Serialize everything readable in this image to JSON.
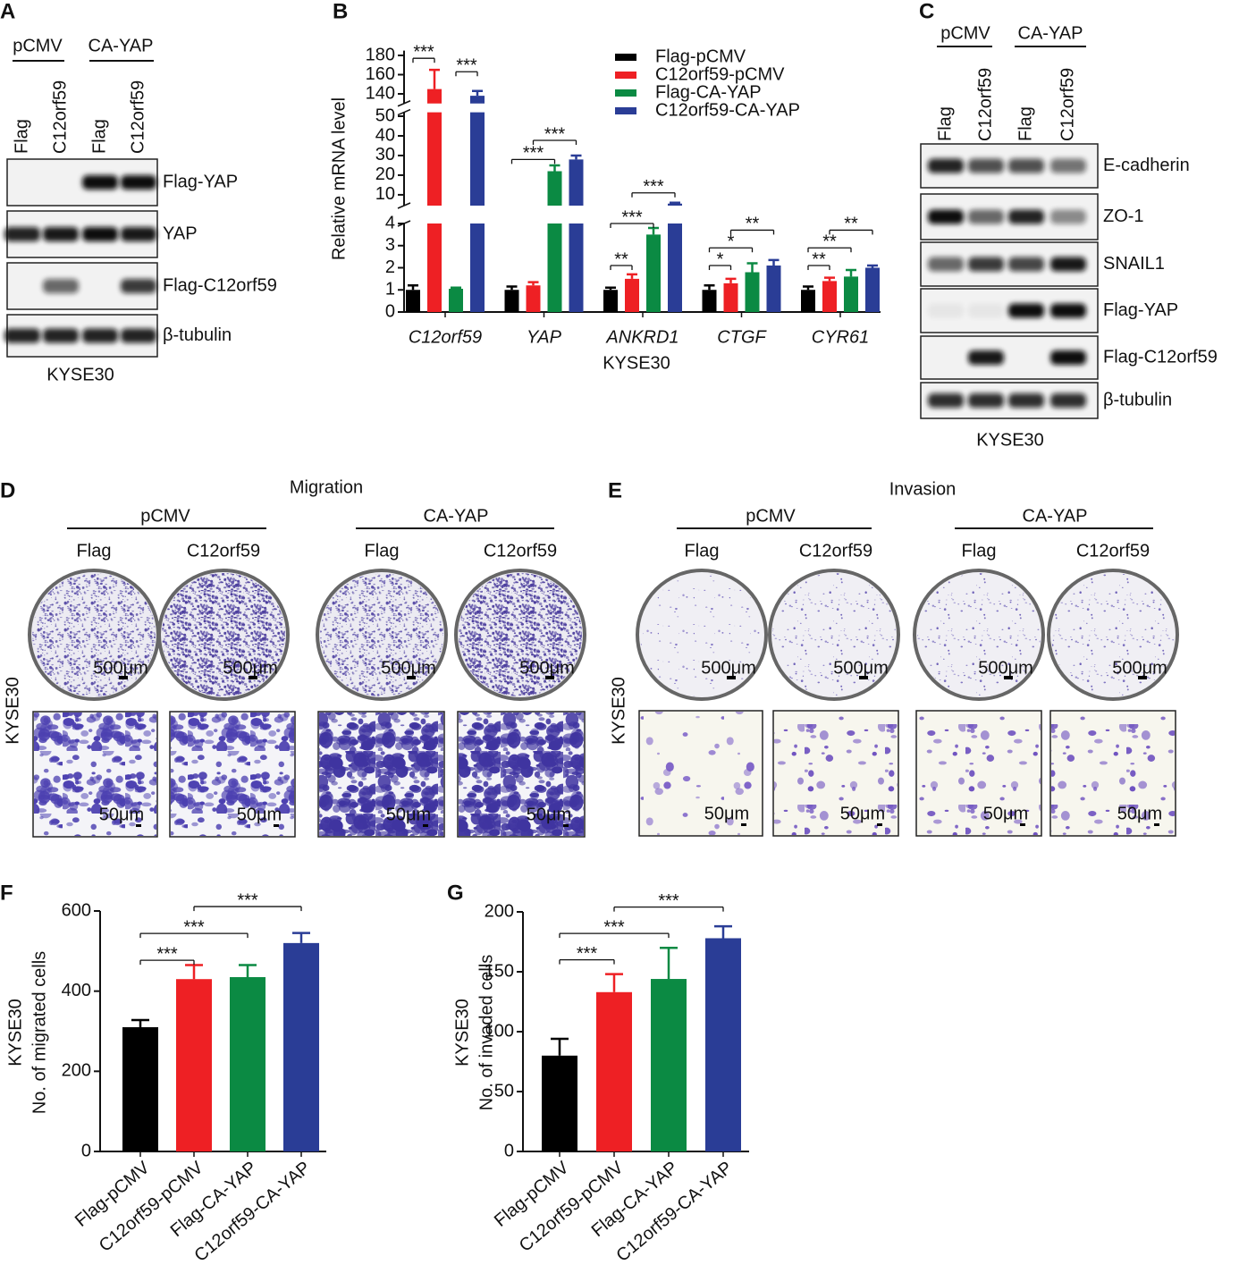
{
  "panels": {
    "A": {
      "letter": "A",
      "groups": [
        "pCMV",
        "CA-YAP"
      ],
      "lanes": [
        "Flag",
        "C12orf59",
        "Flag",
        "C12orf59"
      ],
      "blots": [
        "Flag-YAP",
        "YAP",
        "Flag-C12orf59",
        "β-tubulin"
      ],
      "cell_line": "KYSE30"
    },
    "C": {
      "letter": "C",
      "groups": [
        "pCMV",
        "CA-YAP"
      ],
      "lanes": [
        "Flag",
        "C12orf59",
        "Flag",
        "C12orf59"
      ],
      "blots": [
        "E-cadherin",
        "ZO-1",
        "SNAIL1",
        "Flag-YAP",
        "Flag-C12orf59",
        "β-tubulin"
      ],
      "cell_line": "KYSE30"
    },
    "D": {
      "letter": "D",
      "title": "Migration",
      "groups": [
        "pCMV",
        "CA-YAP"
      ],
      "lanes": [
        "Flag",
        "C12orf59",
        "Flag",
        "C12orf59"
      ],
      "row_label": "KYSE30",
      "scale_large": "500μm",
      "scale_small": "50μm"
    },
    "E": {
      "letter": "E",
      "title": "Invasion",
      "groups": [
        "pCMV",
        "CA-YAP"
      ],
      "lanes": [
        "Flag",
        "C12orf59",
        "Flag",
        "C12orf59"
      ],
      "row_label": "KYSE30",
      "scale_large": "500μm",
      "scale_small": "50μm"
    }
  },
  "chart_data": [
    {
      "letter": "B",
      "type": "grouped_bar",
      "ylabel": "Relative mRNA level",
      "xlabel": "KYSE30",
      "categories": [
        "C12orf59",
        "YAP",
        "ANKRD1",
        "CTGF",
        "CYR61"
      ],
      "series": [
        {
          "name": "Flag-pCMV",
          "color": "#000000",
          "values": [
            1,
            1,
            1,
            1,
            1
          ],
          "errors": [
            0.2,
            0.15,
            0.1,
            0.2,
            0.15
          ]
        },
        {
          "name": "C12orf59-pCMV",
          "color": "#ee2024",
          "values": [
            145,
            1.2,
            1.5,
            1.3,
            1.4
          ],
          "errors": [
            20,
            0.15,
            0.2,
            0.2,
            0.15
          ]
        },
        {
          "name": "Flag-CA-YAP",
          "color": "#0b8a43",
          "values": [
            1.05,
            22,
            3.5,
            1.8,
            1.6
          ],
          "errors": [
            0.05,
            3,
            0.3,
            0.4,
            0.3
          ]
        },
        {
          "name": "C12orf59-CA-YAP",
          "color": "#2a3d96",
          "values": [
            138,
            28,
            5.5,
            2.1,
            2.0
          ],
          "errors": [
            5,
            2,
            0.5,
            0.25,
            0.1
          ]
        }
      ],
      "y_segments": [
        {
          "ylim": [
            0,
            4
          ],
          "yticks": [
            0,
            1,
            2,
            3,
            4
          ]
        },
        {
          "ylim": [
            4.5,
            52
          ],
          "yticks": [
            10,
            20,
            30,
            40,
            50
          ]
        },
        {
          "ylim": [
            130,
            185
          ],
          "yticks": [
            140,
            160,
            180
          ]
        }
      ],
      "annotations": [
        {
          "label": "***",
          "category": 0,
          "pair": [
            0,
            1
          ],
          "y": 177
        },
        {
          "label": "***",
          "category": 0,
          "pair": [
            2,
            3
          ],
          "y": 163
        },
        {
          "label": "***",
          "category": 1,
          "pair": [
            0,
            2
          ],
          "y": 28
        },
        {
          "label": "***",
          "category": 1,
          "pair": [
            1,
            3
          ],
          "y": 37.7
        },
        {
          "label": "**",
          "category": 2,
          "pair": [
            0,
            1
          ],
          "y": 2.1
        },
        {
          "label": "***",
          "category": 2,
          "pair": [
            0,
            2
          ],
          "y": 4
        },
        {
          "label": "***",
          "category": 2,
          "pair": [
            1,
            3
          ],
          "y": 11
        },
        {
          "label": "*",
          "category": 3,
          "pair": [
            0,
            1
          ],
          "y": 2.1
        },
        {
          "label": "*",
          "category": 3,
          "pair": [
            0,
            2
          ],
          "y": 2.9
        },
        {
          "label": "**",
          "category": 3,
          "pair": [
            1,
            3
          ],
          "y": 3.7
        },
        {
          "label": "**",
          "category": 4,
          "pair": [
            0,
            1
          ],
          "y": 2.1
        },
        {
          "label": "**",
          "category": 4,
          "pair": [
            0,
            2
          ],
          "y": 2.9
        },
        {
          "label": "**",
          "category": 4,
          "pair": [
            1,
            3
          ],
          "y": 3.7
        }
      ]
    },
    {
      "letter": "F",
      "type": "bar",
      "ylabel": "No. of migrated cells",
      "row_label": "KYSE30",
      "categories": [
        "Flag-pCMV",
        "C12orf59-pCMV",
        "Flag-CA-YAP",
        "C12orf59-CA-YAP"
      ],
      "values": [
        310,
        430,
        435,
        520
      ],
      "errors": [
        18,
        35,
        30,
        25
      ],
      "colors": [
        "#000000",
        "#ee2024",
        "#0b8a43",
        "#2a3d96"
      ],
      "ylim": [
        0,
        600
      ],
      "yticks": [
        0,
        200,
        400,
        600
      ],
      "annotations": [
        {
          "label": "***",
          "pair": [
            0,
            1
          ],
          "y": 477
        },
        {
          "label": "***",
          "pair": [
            0,
            2
          ],
          "y": 544
        },
        {
          "label": "***",
          "pair": [
            1,
            3
          ],
          "y": 611
        }
      ]
    },
    {
      "letter": "G",
      "type": "bar",
      "ylabel": "No. of invaded cells",
      "row_label": "KYSE30",
      "categories": [
        "Flag-pCMV",
        "C12orf59-pCMV",
        "Flag-CA-YAP",
        "C12orf59-CA-YAP"
      ],
      "values": [
        80,
        133,
        144,
        178
      ],
      "errors": [
        14,
        15,
        26,
        10
      ],
      "colors": [
        "#000000",
        "#ee2024",
        "#0b8a43",
        "#2a3d96"
      ],
      "ylim": [
        0,
        200
      ],
      "yticks": [
        0,
        50,
        100,
        150,
        200
      ],
      "annotations": [
        {
          "label": "***",
          "pair": [
            0,
            1
          ],
          "y": 160
        },
        {
          "label": "***",
          "pair": [
            0,
            2
          ],
          "y": 182
        },
        {
          "label": "***",
          "pair": [
            1,
            3
          ],
          "y": 204
        }
      ]
    }
  ]
}
